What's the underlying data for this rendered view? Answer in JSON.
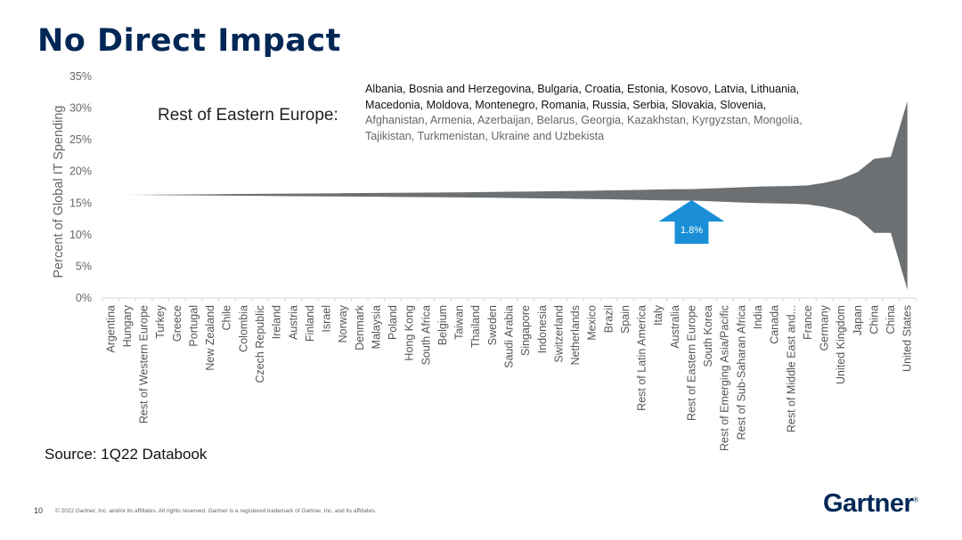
{
  "page": {
    "title": "No Direct Impact",
    "source": "Source: 1Q22 Databook",
    "page_number": "10",
    "copyright": "© 2022 Gartner, Inc. and/or its affiliates. All rights reserved. Gartner is a registered trademark of Gartner, Inc. and its affiliates.",
    "logo_text": "Gartner",
    "logo_mark": "®"
  },
  "callout": {
    "label": "Rest of Eastern Europe:",
    "countries_dark": "Albania, Bosnia and Herzegovina, Bulgaria, Croatia, Estonia, Kosovo, Latvia, Lithuania, Macedonia, Moldova, Montenegro, Romania, Russia, Serbia, Slovakia, Slovenia,",
    "countries_muted": " Afghanistan, Armenia, Azerbaijan, Belarus, Georgia, Kazakhstan, Kyrgyzstan, Mongolia, Tajikistan, Turkmenistan, Ukraine and Uzbekista"
  },
  "chart_data": {
    "type": "area",
    "title": "",
    "xlabel": "",
    "ylabel": "Percent of Global IT Spending",
    "ylim": [
      0,
      35
    ],
    "yticks": [
      "0%",
      "5%",
      "10%",
      "15%",
      "20%",
      "25%",
      "30%",
      "35%"
    ],
    "grid": false,
    "categories": [
      "Argentina",
      "Hungary",
      "Rest of Western Europe",
      "Turkey",
      "Greece",
      "Portugal",
      "New Zealand",
      "Chile",
      "Colombia",
      "Czech Republic",
      "Ireland",
      "Austria",
      "Finland",
      "Israel",
      "Norway",
      "Denmark",
      "Malaysia",
      "Poland",
      "Hong Kong",
      "South Africa",
      "Belgium",
      "Taiwan",
      "Thailand",
      "Sweden",
      "Saudi Arabia",
      "Singapore",
      "Indonesia",
      "Switzerland",
      "Netherlands",
      "Mexico",
      "Brazil",
      "Spain",
      "Rest of Latin America",
      "Italy",
      "Australia",
      "Rest of Eastern Europe",
      "South Korea",
      "Rest of Emerging Asia/Pacific",
      "Rest of Sub-Saharan Africa",
      "India",
      "Canada",
      "Rest of Middle East and...",
      "France",
      "Germany",
      "United Kingdom",
      "Japan",
      "China",
      "China",
      "United States"
    ],
    "series": [
      {
        "role": "upper",
        "values": [
          16.3,
          16.3,
          16.32,
          16.34,
          16.36,
          16.38,
          16.4,
          16.42,
          16.44,
          16.46,
          16.48,
          16.5,
          16.52,
          16.54,
          16.56,
          16.58,
          16.6,
          16.62,
          16.64,
          16.66,
          16.68,
          16.7,
          16.73,
          16.76,
          16.79,
          16.82,
          16.85,
          16.88,
          16.92,
          16.96,
          17.0,
          17.05,
          17.1,
          17.15,
          17.2,
          17.2,
          17.3,
          17.4,
          17.5,
          17.6,
          17.65,
          17.7,
          17.8,
          18.2,
          18.8,
          19.9,
          22.0,
          22.3,
          31.1
        ]
      },
      {
        "role": "lower",
        "values": [
          16.3,
          16.3,
          16.28,
          16.26,
          16.24,
          16.22,
          16.2,
          16.18,
          16.16,
          16.14,
          16.12,
          16.1,
          16.08,
          16.06,
          16.04,
          16.02,
          16.0,
          15.98,
          15.96,
          15.94,
          15.92,
          15.9,
          15.87,
          15.84,
          15.81,
          15.78,
          15.75,
          15.72,
          15.68,
          15.64,
          15.6,
          15.55,
          15.5,
          15.45,
          15.4,
          15.4,
          15.3,
          15.2,
          15.1,
          15.0,
          14.95,
          14.9,
          14.8,
          14.4,
          13.8,
          12.7,
          10.3,
          10.3,
          1.3
        ]
      }
    ],
    "fill_color": "#6d7072",
    "annotation": {
      "category": "Rest of Eastern Europe",
      "label": "1.8%",
      "color": "#1a8fd8"
    }
  }
}
